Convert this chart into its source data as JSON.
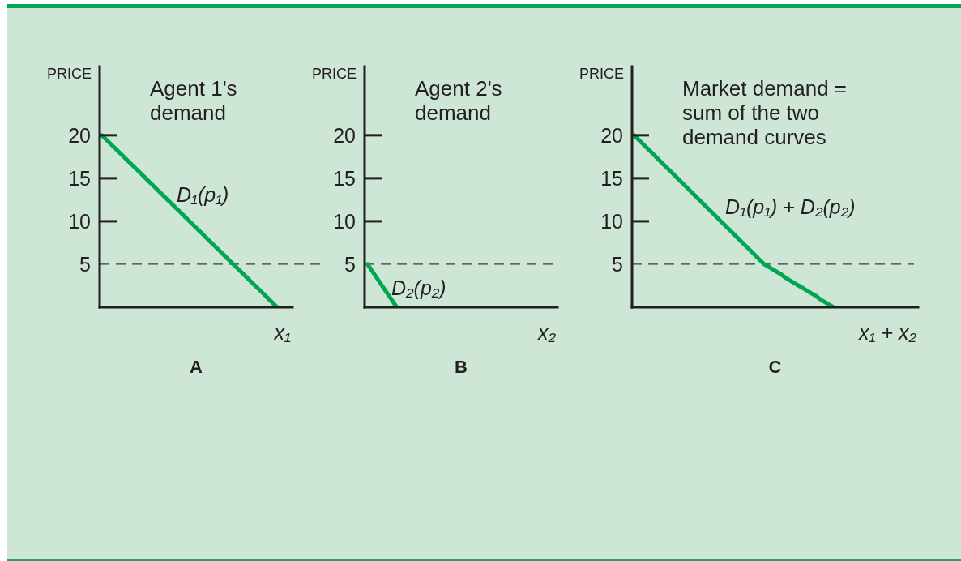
{
  "chart_data": [
    {
      "type": "line",
      "title": "A",
      "subtitle": "Agent 1's demand",
      "xlabel": "x₁",
      "ylabel": "PRICE",
      "categories": [
        null,
        null,
        null,
        null,
        null,
        null,
        null,
        null,
        null,
        null,
        null,
        null,
        null,
        null,
        null,
        null,
        null,
        null,
        null,
        null,
        null,
        null,
        null,
        null,
        null,
        null,
        null,
        null,
        null,
        null,
        null,
        null,
        null,
        null,
        null,
        null,
        null,
        null,
        null,
        null,
        null,
        null,
        null,
        null
      ],
      "series": [
        {
          "name": "D₁(p₁)",
          "color": "#00a651",
          "values": [
            20,
            19.5,
            19,
            18.5,
            18,
            17.5,
            17,
            16.5,
            16,
            15.5,
            15,
            14.5,
            14,
            13.5,
            13,
            12.5,
            12,
            11.5,
            11,
            10.5,
            10,
            9.5,
            9,
            8.5,
            8,
            7.5,
            7,
            6.5,
            6,
            5.5,
            5,
            4.5,
            4,
            3.5,
            3,
            2.5,
            2,
            1.5,
            1,
            0.5,
            0,
            null,
            null,
            null
          ]
        }
      ],
      "ylim": [
        0,
        28
      ],
      "yticks": [
        5,
        10,
        15,
        20
      ],
      "ref_lines": [
        {
          "axis": "y",
          "value": 5,
          "color": "#3c3c3c",
          "line_style": "dashed"
        }
      ],
      "marker": "none"
    },
    {
      "type": "line",
      "title": "B",
      "subtitle": "Agent 2's demand",
      "xlabel": "x₂",
      "ylabel": "PRICE",
      "categories": [
        null,
        null,
        null,
        null,
        null,
        null,
        null,
        null,
        null,
        null,
        null,
        null,
        null,
        null,
        null,
        null,
        null,
        null,
        null,
        null,
        null,
        null,
        null,
        null,
        null,
        null,
        null,
        null,
        null,
        null,
        null,
        null,
        null
      ],
      "series": [
        {
          "name": "D₂(p₂)",
          "color": "#00a651",
          "values": [
            5,
            4,
            3,
            2,
            1,
            0,
            null,
            null,
            null,
            null,
            null,
            null,
            null,
            null,
            null,
            null,
            null,
            null,
            null,
            null,
            null,
            null,
            null,
            null,
            null,
            null,
            null,
            null,
            null,
            null,
            null,
            null,
            null
          ]
        }
      ],
      "ylim": [
        0,
        28
      ],
      "yticks": [
        5,
        10,
        15,
        20
      ],
      "ref_lines": [
        {
          "axis": "y",
          "value": 5,
          "color": "#3c3c3c",
          "line_style": "dashed"
        }
      ],
      "marker": "none"
    },
    {
      "type": "line",
      "title": "C",
      "subtitle": "Market demand = sum of the two demand curves",
      "xlabel": "x₁ + x₂",
      "ylabel": "PRICE",
      "categories": [
        null,
        null,
        null,
        null,
        null,
        null,
        null,
        null,
        null,
        null,
        null,
        null,
        null,
        null,
        null,
        null,
        null,
        null,
        null,
        null,
        null,
        null,
        null,
        null,
        null,
        null,
        null,
        null,
        null,
        null,
        null,
        null,
        null,
        null,
        null,
        null,
        null,
        null,
        null,
        null,
        null,
        null,
        null,
        null,
        null,
        null,
        null,
        null,
        null,
        null,
        null,
        null,
        null,
        null,
        null,
        null,
        null,
        null,
        null,
        null,
        null,
        null,
        null,
        null,
        null,
        null
      ],
      "series": [
        {
          "name": "D₁(p₁) + D₂(p₂)",
          "color": "#00a651",
          "values": [
            20,
            19.5,
            19,
            18.5,
            18,
            17.5,
            17,
            16.5,
            16,
            15.5,
            15,
            14.5,
            14,
            13.5,
            13,
            12.5,
            12,
            11.5,
            11,
            10.5,
            10,
            9.5,
            9,
            8.5,
            8,
            7.5,
            7,
            6.5,
            6,
            5.5,
            5,
            4.7,
            4.4,
            4.1,
            3.8,
            3.4,
            3.1,
            2.8,
            2.5,
            2.2,
            1.9,
            1.6,
            1.3,
            0.9,
            0.6,
            0.3,
            0,
            null,
            null,
            null,
            null,
            null,
            null,
            null,
            null,
            null,
            null,
            null,
            null,
            null,
            null,
            null,
            null,
            null,
            null,
            null
          ]
        }
      ],
      "ylim": [
        0,
        28
      ],
      "yticks": [
        5,
        10,
        15,
        20
      ],
      "ref_lines": [
        {
          "axis": "y",
          "value": 5,
          "color": "#3c3c3c",
          "line_style": "dashed"
        }
      ],
      "marker": "none"
    }
  ]
}
